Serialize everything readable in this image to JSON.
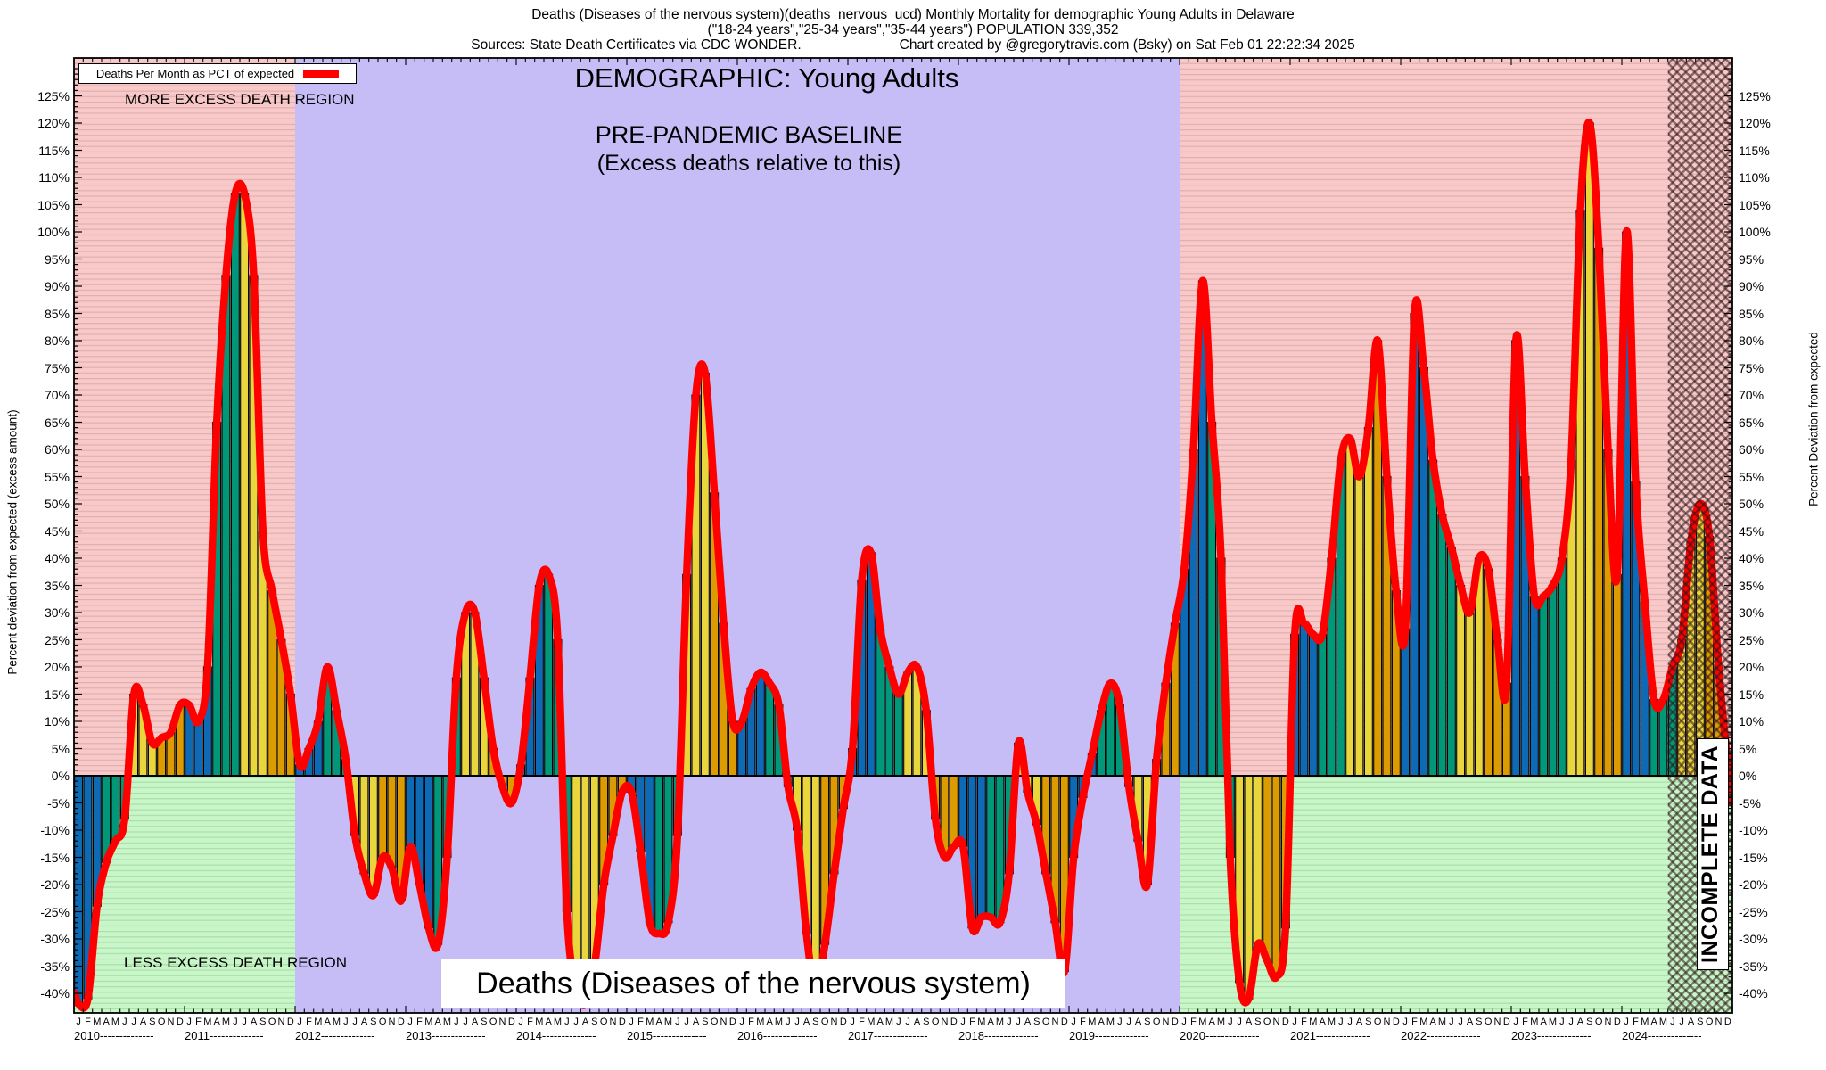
{
  "header": {
    "line1": "Deaths (Diseases of the nervous system)(deaths_nervous_ucd) Monthly Mortality for demographic Young Adults in Delaware",
    "line2": "(\"18-24 years\",\"25-34 years\",\"35-44 years\") POPULATION 339,352",
    "line3_left": "Sources: State Death Certificates via CDC WONDER.",
    "line3_right": "Chart created by @gregorytravis.com (Bsky) on Sat Feb 01 22:22:34 2025"
  },
  "legend": {
    "label": "Deaths Per Month as PCT of expected"
  },
  "annotations": {
    "demographic": "DEMOGRAPHIC: Young Adults",
    "baseline_line1": "PRE-PANDEMIC BASELINE",
    "baseline_line2": "(Excess deaths relative to this)",
    "more_region": "MORE EXCESS DEATH REGION",
    "less_region": "LESS EXCESS DEATH REGION",
    "bottom_title": "Deaths (Diseases of the nervous system)",
    "incomplete": "INCOMPLETE DATA",
    "y_axis_left": "Percent deviation from expected (excess amount)",
    "y_axis_right": "Percent Deviation from expected"
  },
  "chart_data": {
    "type": "bar",
    "subtype": "monthly bars with smoothed red line of same values",
    "unit": "percent deviation from expected deaths",
    "ylim": [
      -43,
      132
    ],
    "y_ticks_pct": [
      125,
      120,
      115,
      110,
      105,
      100,
      95,
      90,
      85,
      80,
      75,
      70,
      65,
      60,
      55,
      50,
      45,
      40,
      35,
      30,
      25,
      20,
      15,
      10,
      5,
      0,
      -5,
      -10,
      -15,
      -20,
      -25,
      -30,
      -35,
      -40
    ],
    "month_letters": [
      "J",
      "F",
      "M",
      "A",
      "M",
      "J",
      "J",
      "A",
      "S",
      "O",
      "N",
      "D"
    ],
    "years": [
      {
        "label": "2010",
        "values": [
          -42,
          -41,
          -24,
          -16,
          -12,
          -8,
          15,
          13,
          6,
          7,
          8,
          13
        ]
      },
      {
        "label": "2011",
        "values": [
          13,
          10,
          20,
          65,
          92,
          107,
          107,
          92,
          45,
          34,
          25,
          15
        ]
      },
      {
        "label": "2012",
        "values": [
          2,
          5,
          10,
          20,
          12,
          3,
          -11,
          -18,
          -22,
          -15,
          -17,
          -23
        ]
      },
      {
        "label": "2013",
        "values": [
          -13,
          -20,
          -28,
          -31,
          -15,
          18,
          30,
          30,
          18,
          5,
          -2,
          -5
        ]
      },
      {
        "label": "2014",
        "values": [
          2,
          18,
          35,
          37,
          25,
          -25,
          -39,
          -42,
          -35,
          -20,
          -11,
          -3
        ]
      },
      {
        "label": "2015",
        "values": [
          -3,
          -14,
          -27,
          -29,
          -27,
          -11,
          37,
          70,
          74,
          52,
          28,
          10
        ]
      },
      {
        "label": "2016",
        "values": [
          10,
          16,
          19,
          17,
          13,
          -2,
          -10,
          -29,
          -39,
          -31,
          -18,
          -6
        ]
      },
      {
        "label": "2017",
        "values": [
          5,
          36,
          41,
          27,
          20,
          15,
          19,
          20,
          12,
          -8,
          -15,
          -13
        ]
      },
      {
        "label": "2018",
        "values": [
          -13,
          -28,
          -26,
          -26,
          -27,
          -18,
          6,
          -3,
          -9,
          -18,
          -27,
          -36
        ]
      },
      {
        "label": "2019",
        "values": [
          -15,
          -4,
          4,
          12,
          17,
          13,
          -2,
          -12,
          -20,
          3,
          17,
          28
        ]
      },
      {
        "label": "2020",
        "values": [
          38,
          60,
          91,
          65,
          40,
          -15,
          -38,
          -41,
          -31,
          -34,
          -37,
          -28
        ]
      },
      {
        "label": "2021",
        "values": [
          26,
          28,
          26,
          26,
          40,
          58,
          62,
          55,
          64,
          80,
          55,
          34
        ]
      },
      {
        "label": "2022",
        "values": [
          27,
          85,
          75,
          58,
          48,
          42,
          35,
          30,
          40,
          38,
          25,
          17
        ]
      },
      {
        "label": "2023",
        "values": [
          80,
          55,
          33,
          33,
          35,
          40,
          58,
          104,
          120,
          97,
          60,
          37
        ]
      },
      {
        "label": "2024",
        "values": [
          100,
          54,
          32,
          14,
          14,
          20,
          25,
          43,
          50,
          44,
          20,
          2
        ]
      }
    ],
    "regions": {
      "baseline_label": "PRE-PANDEMIC BASELINE (lavender band)",
      "baseline_start_index": 24,
      "baseline_end_index": 119,
      "incomplete_label": "INCOMPLETE DATA (crosshatched)",
      "incomplete_start_index": 173,
      "more_excess": "pink band above 0%",
      "less_excess": "green band below 0%"
    },
    "colors": {
      "q1": "#0f6ab5",
      "q2": "#009878",
      "q3": "#e9d63d",
      "q4": "#dc9b00",
      "line": "#ff0000",
      "pink": "#f9c9c9",
      "pink_line": "#dfb0b0",
      "green": "#c9f6c9",
      "green_line": "#a8dfa8",
      "lavender": "#c6bcf6"
    },
    "legend_position": "top-left",
    "grid": "fine 1% horizontal lines inside pink/green bands only"
  }
}
